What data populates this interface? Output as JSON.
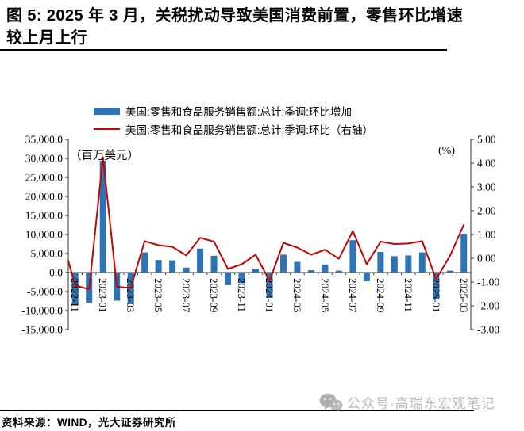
{
  "header": {
    "title_lines": [
      "图 5: 2025 年 3 月，关税扰动导致美国消费前置，零售环比增速",
      "较上月上行"
    ]
  },
  "footer": {
    "source": "资料来源：WIND，光大证券研究所",
    "watermark_text": "公众号·高瑞东宏观笔记"
  },
  "chart_data": {
    "type": "combo bar+line",
    "x": [
      "2022-11",
      "2022-12",
      "2023-01",
      "2023-02",
      "2023-03",
      "2023-04",
      "2023-05",
      "2023-06",
      "2023-07",
      "2023-08",
      "2023-09",
      "2023-10",
      "2023-11",
      "2023-12",
      "2024-01",
      "2024-02",
      "2024-03",
      "2024-04",
      "2024-05",
      "2024-06",
      "2024-07",
      "2024-08",
      "2024-09",
      "2024-10",
      "2024-11",
      "2024-12",
      "2025-01",
      "2025-02",
      "2025-03"
    ],
    "x_tick_labels": [
      "2022-11",
      "2023-01",
      "2023-03",
      "2023-05",
      "2023-07",
      "2023-09",
      "2023-11",
      "2024-01",
      "2024-03",
      "2024-05",
      "2024-07",
      "2024-09",
      "2024-11",
      "2025-01",
      "2025-03"
    ],
    "series": [
      {
        "name": "美国:零售和食品服务销售额:总计:季调:环比增加",
        "type": "bar",
        "axis": "left",
        "color": "#2E74B5",
        "values": [
          -8600,
          -7900,
          29400,
          -7400,
          -8300,
          5300,
          3300,
          3200,
          1300,
          6300,
          4400,
          -3300,
          -2800,
          1000,
          -6500,
          4700,
          2800,
          600,
          2100,
          500,
          8500,
          -2300,
          5400,
          4300,
          4500,
          5300,
          -7100,
          500,
          10200
        ]
      },
      {
        "name": "美国:零售和食品服务销售额:总计:季调:环比（右轴）",
        "type": "line",
        "axis": "right",
        "color": "#C00606",
        "lead_in_value": -0.1,
        "values": [
          -1.15,
          -1.3,
          4.25,
          -1.2,
          -1.25,
          0.72,
          0.55,
          0.48,
          0.12,
          0.86,
          0.7,
          -0.45,
          -0.25,
          0.15,
          -0.95,
          0.65,
          0.45,
          0.15,
          0.36,
          -0.02,
          1.15,
          -0.25,
          0.7,
          0.6,
          0.62,
          0.72,
          -0.88,
          0.1,
          1.42
        ]
      }
    ],
    "left_axis": {
      "label": "（百万美元）",
      "min": -15000,
      "max": 35000,
      "step": 5000,
      "tick_labels": [
        "35,000.0",
        "30,000.0",
        "25,000.0",
        "20,000.0",
        "15,000.0",
        "10,000.0",
        "5,000.0",
        "0.0",
        "-5,000.0",
        "-10,000.0",
        "-15,000.0"
      ]
    },
    "right_axis": {
      "label": "(%)",
      "min": -3,
      "max": 5,
      "step": 1,
      "tick_labels": [
        "5.00",
        "4.00",
        "3.00",
        "2.00",
        "1.00",
        "0.00",
        "-1.00",
        "-2.00",
        "-3.00"
      ]
    },
    "grid": false,
    "legend_position": "top-center"
  }
}
